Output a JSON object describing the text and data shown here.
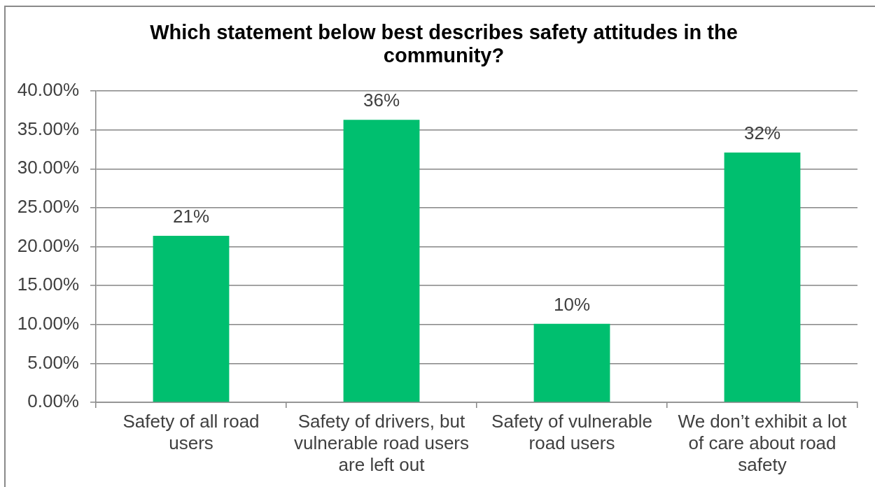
{
  "chart_data": {
    "type": "bar",
    "title": "Which statement below best describes safety attitudes in the community?",
    "categories": [
      "Safety of all road users",
      "Safety of drivers, but vulnerable road users are left out",
      "Safety of vulnerable road users",
      "We don’t exhibit a lot of care about road safety"
    ],
    "values": [
      21.4,
      36.3,
      10.1,
      32.1
    ],
    "value_labels": [
      "21%",
      "36%",
      "10%",
      "32%"
    ],
    "color": "#00bf6f",
    "ylim": [
      0,
      40
    ],
    "yticks": [
      {
        "value": 0,
        "label": "0.00%"
      },
      {
        "value": 5,
        "label": "5.00%"
      },
      {
        "value": 10,
        "label": "10.00%"
      },
      {
        "value": 15,
        "label": "15.00%"
      },
      {
        "value": 20,
        "label": "20.00%"
      },
      {
        "value": 25,
        "label": "25.00%"
      },
      {
        "value": 30,
        "label": "30.00%"
      },
      {
        "value": 35,
        "label": "35.00%"
      },
      {
        "value": 40,
        "label": "40.00%"
      }
    ],
    "grid": "y"
  }
}
